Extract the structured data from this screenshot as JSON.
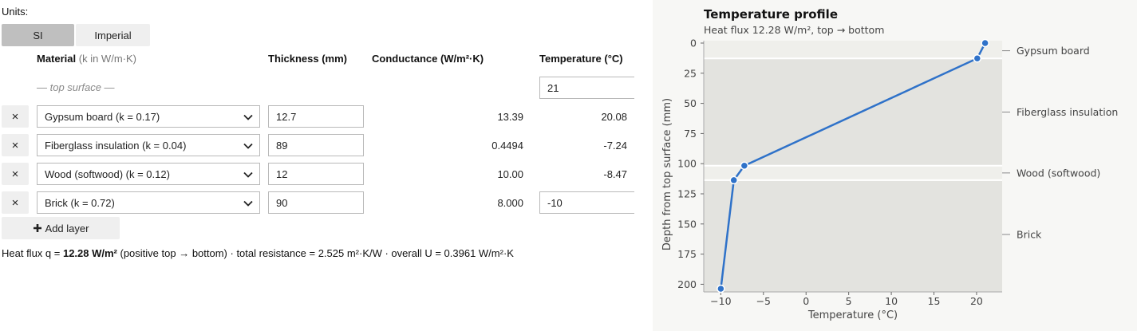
{
  "units": {
    "label": "Units:",
    "options": [
      "SI",
      "Imperial"
    ],
    "selected": "SI"
  },
  "table": {
    "header": {
      "material": "Material",
      "material_note": "(k in W/m·K)",
      "thickness": "Thickness (mm)",
      "conductance": "Conductance (W/m²·K)",
      "temperature": "Temperature (°C)"
    },
    "top_surface": {
      "label": "— top surface —",
      "temperature": "21"
    },
    "layers": [
      {
        "material": "Gypsum board  (k = 0.17)",
        "thickness": "12.7",
        "conductance": "13.39",
        "temperature": "20.08"
      },
      {
        "material": "Fiberglass insulation  (k = 0.04)",
        "thickness": "89",
        "conductance": "0.4494",
        "temperature": "-7.24"
      },
      {
        "material": "Wood (softwood)  (k = 0.12)",
        "thickness": "12",
        "conductance": "10.00",
        "temperature": "-8.47"
      },
      {
        "material": "Brick  (k = 0.72)",
        "thickness": "90",
        "conductance": "8.000",
        "temperature": "-10"
      }
    ],
    "remove_label": "×",
    "add_layer": {
      "icon": "plus-icon",
      "label": "Add layer"
    }
  },
  "summary": {
    "prefix": "Heat flux q = ",
    "flux": "12.28 W/m²",
    "rest": " (positive top → bottom)  ·  total resistance = 2.525 m²·K/W  ·  overall U = 0.3961 W/m²·K"
  },
  "chart_data": {
    "type": "line",
    "title": "Temperature profile",
    "subtitle": "Heat flux 12.28 W/m², top → bottom",
    "xlabel": "Temperature (°C)",
    "ylabel": "Depth from top surface (mm)",
    "xlim": [
      -12,
      23
    ],
    "ylim": [
      203.7,
      0
    ],
    "x_ticks": [
      -10,
      -5,
      0,
      5,
      10,
      15,
      20
    ],
    "x_tick_labels": [
      "−10",
      "−5",
      "0",
      "5",
      "10",
      "15",
      "20"
    ],
    "y_ticks": [
      0,
      25,
      50,
      75,
      100,
      125,
      150,
      175,
      200
    ],
    "points": [
      {
        "x": 21,
        "y": 0
      },
      {
        "x": 20.08,
        "y": 12.7
      },
      {
        "x": -7.24,
        "y": 101.7
      },
      {
        "x": -8.47,
        "y": 113.7
      },
      {
        "x": -10,
        "y": 203.7
      }
    ],
    "layers": [
      {
        "name": "Gypsum board",
        "top": 0,
        "bottom": 12.7
      },
      {
        "name": "Fiberglass insulation",
        "top": 12.7,
        "bottom": 101.7
      },
      {
        "name": "Wood (softwood)",
        "top": 101.7,
        "bottom": 113.7
      },
      {
        "name": "Brick",
        "top": 113.7,
        "bottom": 203.7
      }
    ],
    "colors": {
      "line": "#2f72c9",
      "band_a": "#efefeb",
      "band_b": "#e3e3df"
    }
  }
}
